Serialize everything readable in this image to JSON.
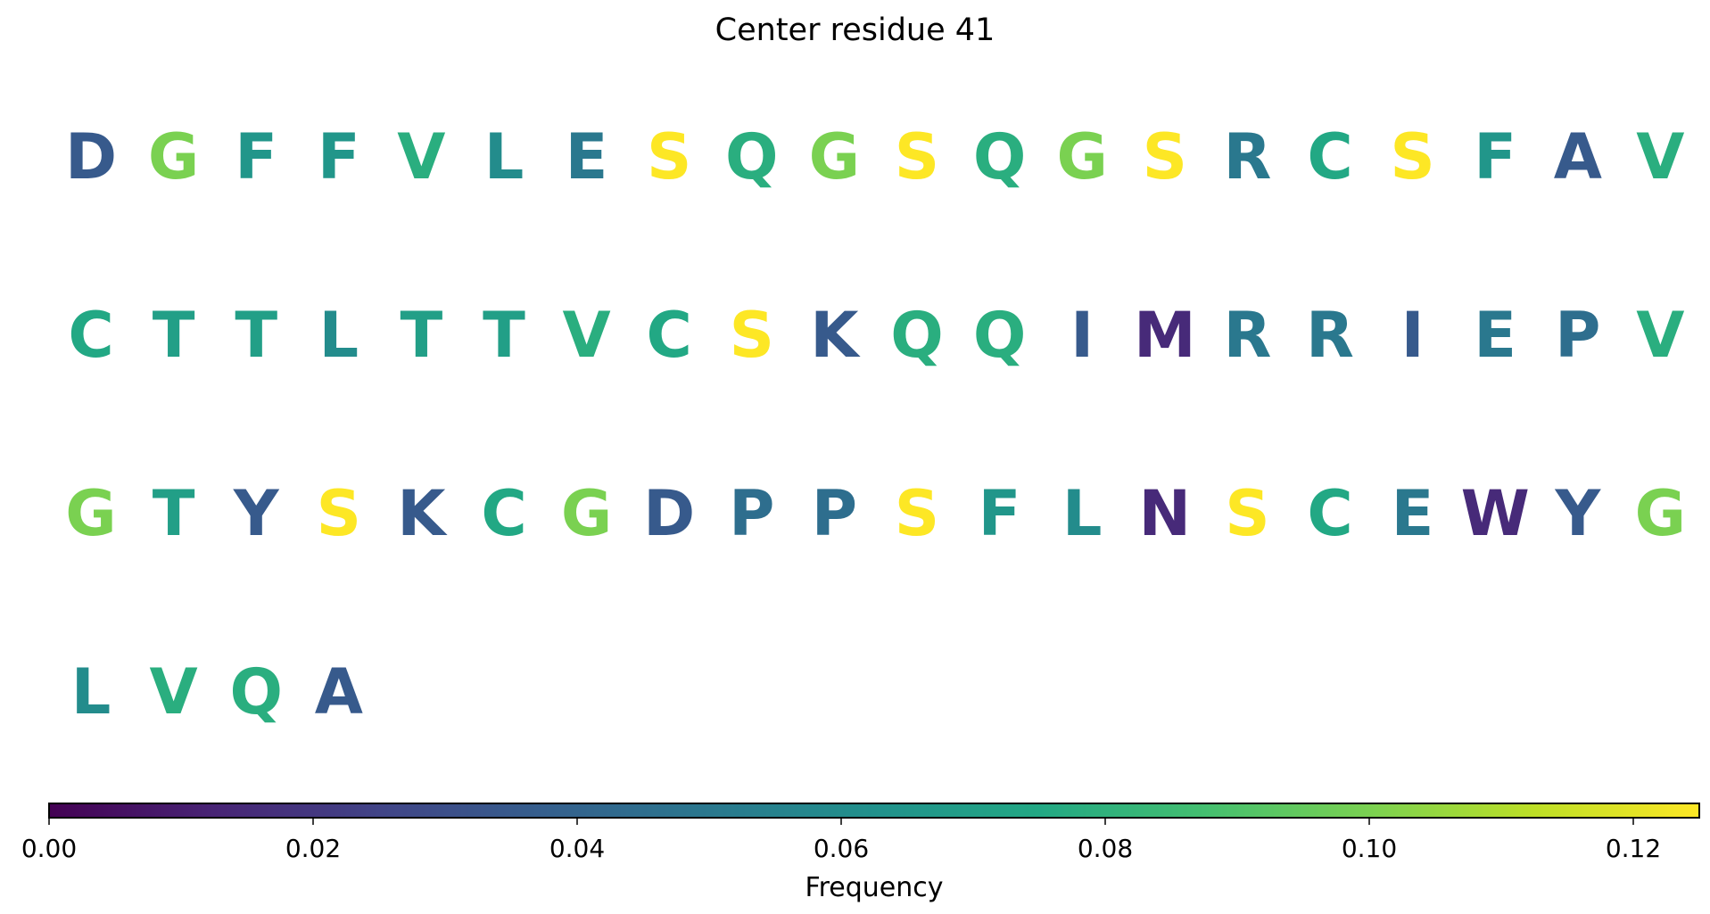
{
  "chart_data": {
    "type": "heatmap",
    "title": "Center residue 41",
    "sequence": [
      {
        "residue": "D",
        "frequency": 0.035
      },
      {
        "residue": "G",
        "frequency": 0.1
      },
      {
        "residue": "F",
        "frequency": 0.065
      },
      {
        "residue": "F",
        "frequency": 0.065
      },
      {
        "residue": "V",
        "frequency": 0.078
      },
      {
        "residue": "L",
        "frequency": 0.06
      },
      {
        "residue": "E",
        "frequency": 0.05
      },
      {
        "residue": "S",
        "frequency": 0.125
      },
      {
        "residue": "Q",
        "frequency": 0.078
      },
      {
        "residue": "G",
        "frequency": 0.1
      },
      {
        "residue": "S",
        "frequency": 0.125
      },
      {
        "residue": "Q",
        "frequency": 0.078
      },
      {
        "residue": "G",
        "frequency": 0.1
      },
      {
        "residue": "S",
        "frequency": 0.125
      },
      {
        "residue": "R",
        "frequency": 0.05
      },
      {
        "residue": "C",
        "frequency": 0.075
      },
      {
        "residue": "S",
        "frequency": 0.125
      },
      {
        "residue": "F",
        "frequency": 0.065
      },
      {
        "residue": "A",
        "frequency": 0.035
      },
      {
        "residue": "V",
        "frequency": 0.078
      },
      {
        "residue": "C",
        "frequency": 0.075
      },
      {
        "residue": "T",
        "frequency": 0.07
      },
      {
        "residue": "T",
        "frequency": 0.07
      },
      {
        "residue": "L",
        "frequency": 0.06
      },
      {
        "residue": "T",
        "frequency": 0.07
      },
      {
        "residue": "T",
        "frequency": 0.07
      },
      {
        "residue": "V",
        "frequency": 0.078
      },
      {
        "residue": "C",
        "frequency": 0.075
      },
      {
        "residue": "S",
        "frequency": 0.125
      },
      {
        "residue": "K",
        "frequency": 0.035
      },
      {
        "residue": "Q",
        "frequency": 0.078
      },
      {
        "residue": "Q",
        "frequency": 0.078
      },
      {
        "residue": "I",
        "frequency": 0.035
      },
      {
        "residue": "M",
        "frequency": 0.015
      },
      {
        "residue": "R",
        "frequency": 0.05
      },
      {
        "residue": "R",
        "frequency": 0.05
      },
      {
        "residue": "I",
        "frequency": 0.035
      },
      {
        "residue": "E",
        "frequency": 0.05
      },
      {
        "residue": "P",
        "frequency": 0.045
      },
      {
        "residue": "V",
        "frequency": 0.078
      },
      {
        "residue": "G",
        "frequency": 0.1
      },
      {
        "residue": "T",
        "frequency": 0.07
      },
      {
        "residue": "Y",
        "frequency": 0.035
      },
      {
        "residue": "S",
        "frequency": 0.125
      },
      {
        "residue": "K",
        "frequency": 0.035
      },
      {
        "residue": "C",
        "frequency": 0.075
      },
      {
        "residue": "G",
        "frequency": 0.1
      },
      {
        "residue": "D",
        "frequency": 0.035
      },
      {
        "residue": "P",
        "frequency": 0.045
      },
      {
        "residue": "P",
        "frequency": 0.045
      },
      {
        "residue": "S",
        "frequency": 0.125
      },
      {
        "residue": "F",
        "frequency": 0.065
      },
      {
        "residue": "L",
        "frequency": 0.06
      },
      {
        "residue": "N",
        "frequency": 0.015
      },
      {
        "residue": "S",
        "frequency": 0.125
      },
      {
        "residue": "C",
        "frequency": 0.075
      },
      {
        "residue": "E",
        "frequency": 0.05
      },
      {
        "residue": "W",
        "frequency": 0.015
      },
      {
        "residue": "Y",
        "frequency": 0.035
      },
      {
        "residue": "G",
        "frequency": 0.1
      },
      {
        "residue": "L",
        "frequency": 0.06
      },
      {
        "residue": "V",
        "frequency": 0.078
      },
      {
        "residue": "Q",
        "frequency": 0.078
      },
      {
        "residue": "A",
        "frequency": 0.035
      }
    ],
    "colorbar": {
      "label": "Frequency",
      "range": [
        0,
        0.125
      ],
      "ticks": [
        0.0,
        0.02,
        0.04,
        0.06,
        0.08,
        0.1,
        0.12
      ],
      "tick_labels": [
        "0.00",
        "0.02",
        "0.04",
        "0.06",
        "0.08",
        "0.10",
        "0.12"
      ],
      "colormap": "viridis",
      "orientation": "horizontal"
    }
  }
}
